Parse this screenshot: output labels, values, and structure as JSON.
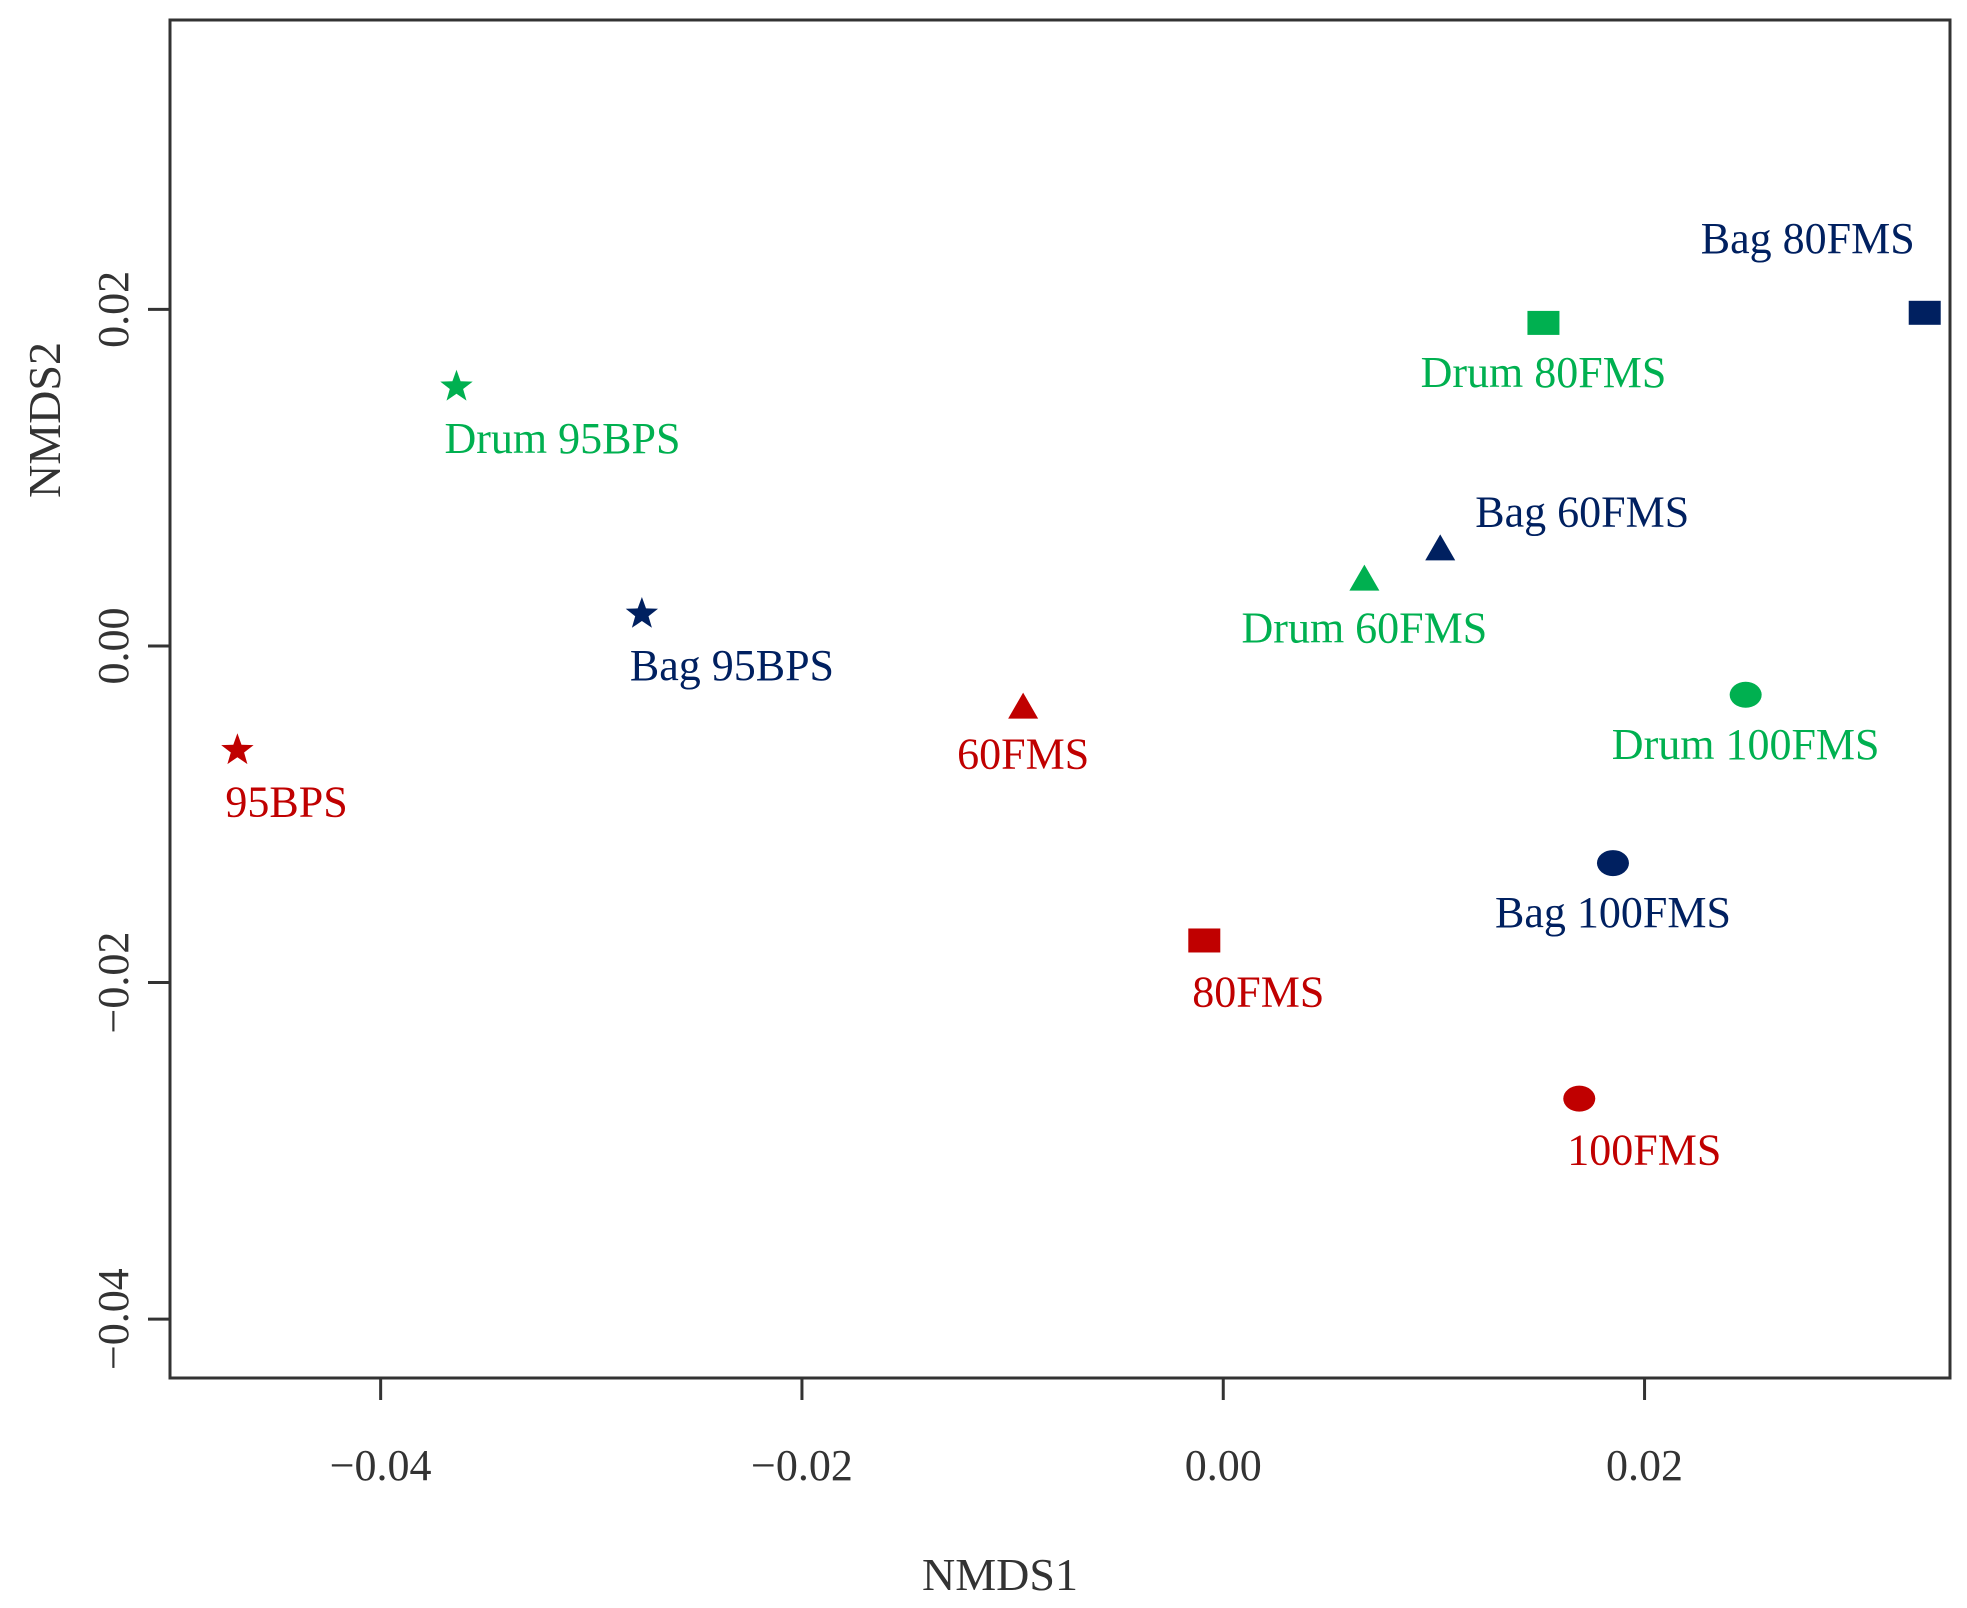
{
  "chart_data": {
    "type": "scatter",
    "title": "",
    "xlabel": "NMDS1",
    "ylabel": "NMDS2",
    "xlim": [
      -0.05,
      0.0345
    ],
    "ylim": [
      -0.0435,
      0.0372
    ],
    "xticks": [
      -0.04,
      -0.02,
      0.0,
      0.02
    ],
    "xtick_labels": [
      "−0.04",
      "−0.02",
      "0.00",
      "0.02"
    ],
    "yticks": [
      -0.04,
      -0.02,
      0.0,
      0.02
    ],
    "ytick_labels": [
      "−0.04",
      "−0.02",
      "0.00",
      "0.02"
    ],
    "grid": false,
    "colors": {
      "red": "#c00000",
      "green": "#00b050",
      "navy": "#002060",
      "axis": "#333333"
    },
    "points": [
      {
        "label": "95BPS",
        "x": -0.0468,
        "y": -0.0062,
        "shape": "star",
        "color": "red",
        "label_pos": "below-right"
      },
      {
        "label": "Drum 95BPS",
        "x": -0.0364,
        "y": 0.0154,
        "shape": "star",
        "color": "green",
        "label_pos": "below-right"
      },
      {
        "label": "Bag 95BPS",
        "x": -0.0276,
        "y": 0.0019,
        "shape": "star",
        "color": "navy",
        "label_pos": "below-right"
      },
      {
        "label": "60FMS",
        "x": -0.0095,
        "y": -0.0036,
        "shape": "triangle",
        "color": "red",
        "label_pos": "below-left"
      },
      {
        "label": "80FMS",
        "x": -0.0009,
        "y": -0.0175,
        "shape": "square",
        "color": "red",
        "label_pos": "below-right"
      },
      {
        "label": "100FMS",
        "x": 0.0169,
        "y": -0.0269,
        "shape": "circle",
        "color": "red",
        "label_pos": "below-right"
      },
      {
        "label": "Drum 60FMS",
        "x": 0.0067,
        "y": 0.004,
        "shape": "triangle",
        "color": "green",
        "label_pos": "below"
      },
      {
        "label": "Drum 80FMS",
        "x": 0.0152,
        "y": 0.0192,
        "shape": "square",
        "color": "green",
        "label_pos": "below"
      },
      {
        "label": "Drum 100FMS",
        "x": 0.0248,
        "y": -0.0029,
        "shape": "circle",
        "color": "green",
        "label_pos": "below"
      },
      {
        "label": "Bag 60FMS",
        "x": 0.0103,
        "y": 0.0058,
        "shape": "triangle",
        "color": "navy",
        "label_pos": "above-right"
      },
      {
        "label": "Bag 80FMS",
        "x": 0.0333,
        "y": 0.0198,
        "shape": "square",
        "color": "navy",
        "label_pos": "above-left"
      },
      {
        "label": "Bag 100FMS",
        "x": 0.0185,
        "y": -0.0129,
        "shape": "circle",
        "color": "navy",
        "label_pos": "below"
      }
    ]
  }
}
